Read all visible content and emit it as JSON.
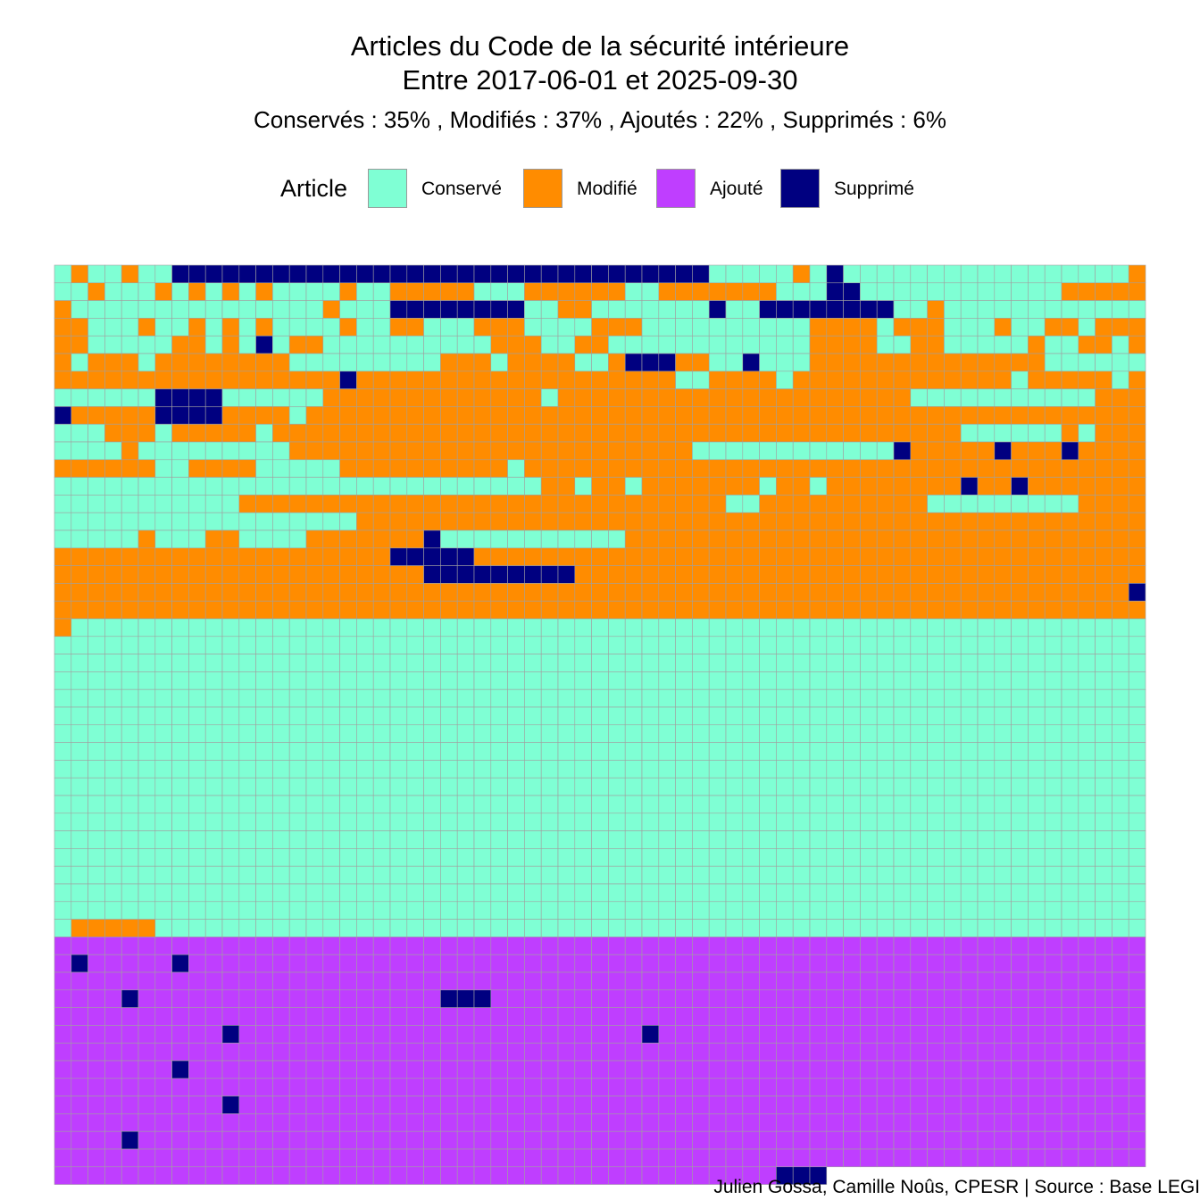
{
  "title_line1": "Articles du Code de la sécurité intérieure",
  "title_line2": "Entre 2017-06-01 et 2025-09-30",
  "subtitle": "Conservés :  35% , Modifiés :  37% , Ajoutés :  22% , Suppri­més :  6%",
  "legend": {
    "title": "Article",
    "items": [
      {
        "label": "Conservé",
        "color": "#7fffd4"
      },
      {
        "label": "Modifié",
        "color": "#ff8c00"
      },
      {
        "label": "Ajouté",
        "color": "#bf3eff"
      },
      {
        "label": "Supprimé",
        "color": "#000080"
      }
    ]
  },
  "caption": "Julien Gossa, Camille Noûs, CPESR  |  Source : Base LEGI",
  "chart_data": {
    "type": "waffle",
    "columns": 65,
    "categories": [
      "Conservé",
      "Modifié",
      "Ajouté",
      "Supprimé"
    ],
    "percentages": [
      35,
      37,
      22,
      6
    ],
    "grid_rows": [
      "CMCCMCCDDDDDDDDDDDDDDDDDDDDDDDDDDDDDDDDCCCCCMCDCCCCCCCCCCCCCCCCCM",
      "CCMCCCMCMCMCMCCCCMCCMMMMMCCCMMMMMMCCMMMMMMMCCCDDCCCCCCCCCCCCMMMMM",
      "MCCCCCCCCCCCCCCCMCCCDDDDDDDDCCMMCCCCCCCDCCDDDDDDDDCCMCCCCCCCCCCCC",
      "MMCCCMCCMCMCMCCCCMCCMMCCCMMMCCCCMMMCCCCCCCCCCMMMMCMMMCCCMCCMMCMMM",
      "MMCCCCCMMCMCDCMMCCCCCCCCCCMMMCCMMCCCCCCCCCCCCMMMMCCMMCCCCCMCCMMCM",
      "MCMMMCMMMMMMMMCCCCCCCCCMMMCMMMMCCMDDDMMCCDCCCMMMMMMMMMMMMMMCCCCCC",
      "MMMMMMMMMMMMMMMMMDMMMMMMMMMMMMMMMMMMMCCMMMMCMMMMMMMMMMMMMCMMMMMCM",
      "CCCCCCDDDDCCCCCCMMMMMMMMMMMMMCMMMMMMMMMMMMMMMMMMMMMCCCCCCCCCCCMMM",
      "DMMMMMDDDDMMMMCMMMMMMMMMMMMMMMMMMMMMMMMMMMMMMMMMMMMMMMMMMMMMMMMMM",
      "CCCMMMCMMMMMCMMMMMMMMMMMMMMMMMMMMMMMMMMMMMMMMMMMMMMMMMCCCCCCMCMMM",
      "CCCCMCCCCCCCCCMMMMMMMMMMMMMMMMMMMMMMMMCCCCCCCCCCCCDMMMMMDMMMDMMMM",
      "MMMMMMCCMMMMCCCCCMMMMMMMMMMCMMMMMMMMMMMMMMMMMMMMMMMMMMMMMMMMMMMMM",
      "CCCCCCCCCCCCCCCCCCCCCCCCCCCCCMMCMMCMMMMMMMCMMCMMMMMMMMDMMDMMMMMMM",
      "CCCCCCCCCCCMMMMMMMMMMMMMMMMMMMMMMMMMMMMMCCMMMMMMMMMMCCCCCCCCCMMMM",
      "CCCCCCCCCCCCCCCCCCMMMMMMMMMMMMMMMMMMMMMMMMMMMMMMMMMMMMMMMMMMMMMMM",
      "CCCCCMCCCMMCCCCMMMMMMMDCCCCCCCCCCCMMMMMMMMMMMMMMMMMMMMMMMMMMMMMMM",
      "MMMMMMMMMMMMMMMMMMMMDDDDDMMMMMMMMMMMMMMMMMMMMMMMMMMMMMMMMMMMMMMMM",
      "MMMMMMMMMMMMMMMMMMMMMMDDDDDDDDDMMMMMMMMMMMMMMMMMMMMMMMMMMMMMMMMMM",
      "MMMMMMMMMMMMMMMMMMMMMMMMMMMMMMMMMMMMMMMMMMMMMMMMMMMMMMMMMMMMMMMMD",
      "MMMMMMMMMMMMMMMMMMMMMMMMMMMMMMMMMMMMMMMMMMMMMMMMMMMMMMMMMMMMMMMMM",
      "MCCCCCCCCCCCCCCCCCCCCCCCCCCCCCCCCCCCCCCCCCCCCCCCCCCCCCCCCCCCCCCCC",
      "CCCCCCCCCCCCCCCCCCCCCCCCCCCCCCCCCCCCCCCCCCCCCCCCCCCCCCCCCCCCCCCCC",
      "CCCCCCCCCCCCCCCCCCCCCCCCCCCCCCCCCCCCCCCCCCCCCCCCCCCCCCCCCCCCCCCCC",
      "CCCCCCCCCCCCCCCCCCCCCCCCCCCCCCCCCCCCCCCCCCCCCCCCCCCCCCCCCCCCCCCCC",
      "CCCCCCCCCCCCCCCCCCCCCCCCCCCCCCCCCCCCCCCCCCCCCCCCCCCCCCCCCCCCCCCCC",
      "CCCCCCCCCCCCCCCCCCCCCCCCCCCCCCCCCCCCCCCCCCCCCCCCCCCCCCCCCCCCCCCCC",
      "CCCCCCCCCCCCCCCCCCCCCCCCCCCCCCCCCCCCCCCCCCCCCCCCCCCCCCCCCCCCCCCCC",
      "CCCCCCCCCCCCCCCCCCCCCCCCCCCCCCCCCCCCCCCCCCCCCCCCCCCCCCCCCCCCCCCCC",
      "CCCCCCCCCCCCCCCCCCCCCCCCCCCCCCCCCCCCCCCCCCCCCCCCCCCCCCCCCCCCCCCCC",
      "CCCCCCCCCCCCCCCCCCCCCCCCCCCCCCCCCCCCCCCCCCCCCCCCCCCCCCCCCCCCCCCCC",
      "CCCCCCCCCCCCCCCCCCCCCCCCCCCCCCCCCCCCCCCCCCCCCCCCCCCCCCCCCCCCCCCCC",
      "CCCCCCCCCCCCCCCCCCCCCCCCCCCCCCCCCCCCCCCCCCCCCCCCCCCCCCCCCCCCCCCCC",
      "CCCCCCCCCCCCCCCCCCCCCCCCCCCCCCCCCCCCCCCCCCCCCCCCCCCCCCCCCCCCCCCCC",
      "CCCCCCCCCCCCCCCCCCCCCCCCCCCCCCCCCCCCCCCCCCCCCCCCCCCCCCCCCCCCCCCCC",
      "CCCCCCCCCCCCCCCCCCCCCCCCCCCCCCCCCCCCCCCCCCCCCCCCCCCCCCCCCCCCCCCCC",
      "CCCCCCCCCCCCCCCCCCCCCCCCCCCCCCCCCCCCCCCCCCCCCCCCCCCCCCCCCCCCCCCCC",
      "CCCCCCCCCCCCCCCCCCCCCCCCCCCCCCCCCCCCCCCCCCCCCCCCCCCCCCCCCCCCCCCCC",
      "CMMMMMCCCCCCCCCCCCCCCCCCCCCCCCCCCCCCCCCCCCCCCCCCCCCCCCCCCCCCCCCCC",
      "AAAAAAAAAAAAAAAAAAAAAAAAAAAAAAAAAAAAAAAAAAAAAAAAAAAAAAAAAAAAAAAAA",
      "ADAAAAADAAAAAAAAAAAAAAAAAAAAAAAAAAAAAAAAAAAAAAAAAAAAAAAAAAAAAAAAA",
      "AAAAAAAAAAAAAAAAAAAAAAAAAAAAAAAAAAAAAAAAAAAAAAAAAAAAAAAAAAAAAAAAA",
      "AAAADAAAAAAAAAAAAAAAAAADDDAAAAAAAAAAAAAAAAAAAAAAAAAAAAAAAAAAAAAAA",
      "AAAAAAAAAAAAAAAAAAAAAAAAAAAAAAAAAAAAAAAAAAAAAAAAAAAAAAAAAAAAAAAAA",
      "AAAAAAAAAADAAAAAAAAAAAAAAAAAAAAAAAADAAAAAAAAAAAAAAAAAAAAAAAAAAAAA",
      "AAAAAAAAAAAAAAAAAAAAAAAAAAAAAAAAAAAAAAAAAAAAAAAAAAAAAAAAAAAAAAAAA",
      "AAAAAAADAAAAAAAAAAAAAAAAAAAAAAAAAAAAAAAAAAAAAAAAAAAAAAAAAAAAAAAAA",
      "AAAAAAAAAAAAAAAAAAAAAAAAAAAAAAAAAAAAAAAAAAAAAAAAAAAAAAAAAAAAAAAAA",
      "AAAAAAAAAADAAAAAAAAAAAAAAAAAAAAAAAAAAAAAAAAAAAAAAAAAAAAAAAAAAAAAA",
      "AAAAAAAAAAAAAAAAAAAAAAAAAAAAAAAAAAAAAAAAAAAAAAAAAAAAAAAAAAAAAAAAA",
      "AAAADAAAAAAAAAAAAAAAAAAAAAAAAAAAAAAAAAAAAAAAAAAAAAAAAAAAAAAAAAAAA",
      "AAAAAAAAAAAAAAAAAAAAAAAAAAAAAAAAAAAAAAAAAAAAAAAAAAAAAAAAAAAAAAAAA",
      "AAAAAAAAAAAAAAAAAAAAAAAAAAAAAAAAAAAAAAAAAAADDD"
    ]
  }
}
